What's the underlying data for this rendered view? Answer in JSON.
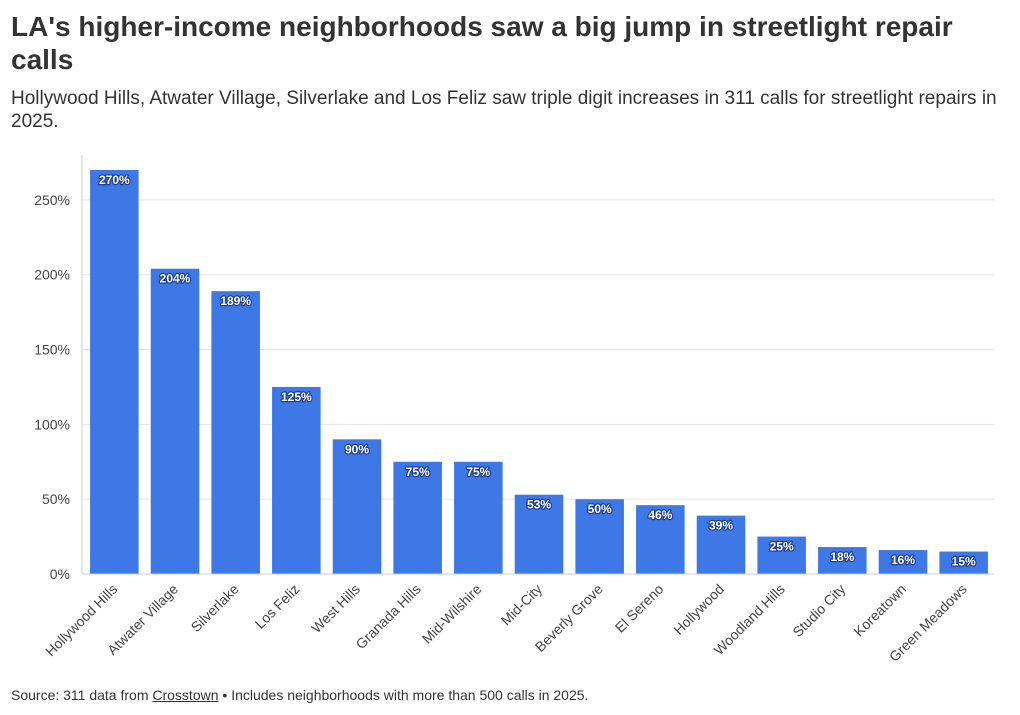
{
  "title": "LA's higher-income neighborhoods saw a big jump in streetlight repair calls",
  "subtitle": "Hollywood Hills, Atwater Village, Silverlake and Los Feliz saw triple digit increases in 311 calls for streetlight repairs in 2025.",
  "footer": {
    "prefix": "Source: 311 data from ",
    "link_text": "Crosstown",
    "suffix": " • Includes neighborhoods with more than 500 calls in 2025."
  },
  "colors": {
    "bar": "#3d78e6",
    "grid": "#e6e6e6",
    "axis": "#cccccc"
  },
  "chart_data": {
    "type": "bar",
    "categories": [
      "Hollywood Hills",
      "Atwater Village",
      "Silverlake",
      "Los Feliz",
      "West Hills",
      "Granada Hills",
      "Mid-Wilshire",
      "Mid-City",
      "Beverly Grove",
      "El Sereno",
      "Hollywood",
      "Woodland Hills",
      "Studio City",
      "Koreatown",
      "Green Meadows"
    ],
    "values": [
      270,
      204,
      189,
      125,
      90,
      75,
      75,
      53,
      50,
      46,
      39,
      25,
      18,
      16,
      15
    ],
    "value_labels": [
      "270%",
      "204%",
      "189%",
      "125%",
      "90%",
      "75%",
      "75%",
      "53%",
      "50%",
      "46%",
      "39%",
      "25%",
      "18%",
      "16%",
      "15%"
    ],
    "yticks": [
      0,
      50,
      100,
      150,
      200,
      250
    ],
    "ytick_labels": [
      "0%",
      "50%",
      "100%",
      "150%",
      "200%",
      "250%"
    ],
    "ylim": [
      0,
      280
    ],
    "xlabel": "",
    "ylabel": "",
    "grid": true,
    "legend": "none"
  }
}
